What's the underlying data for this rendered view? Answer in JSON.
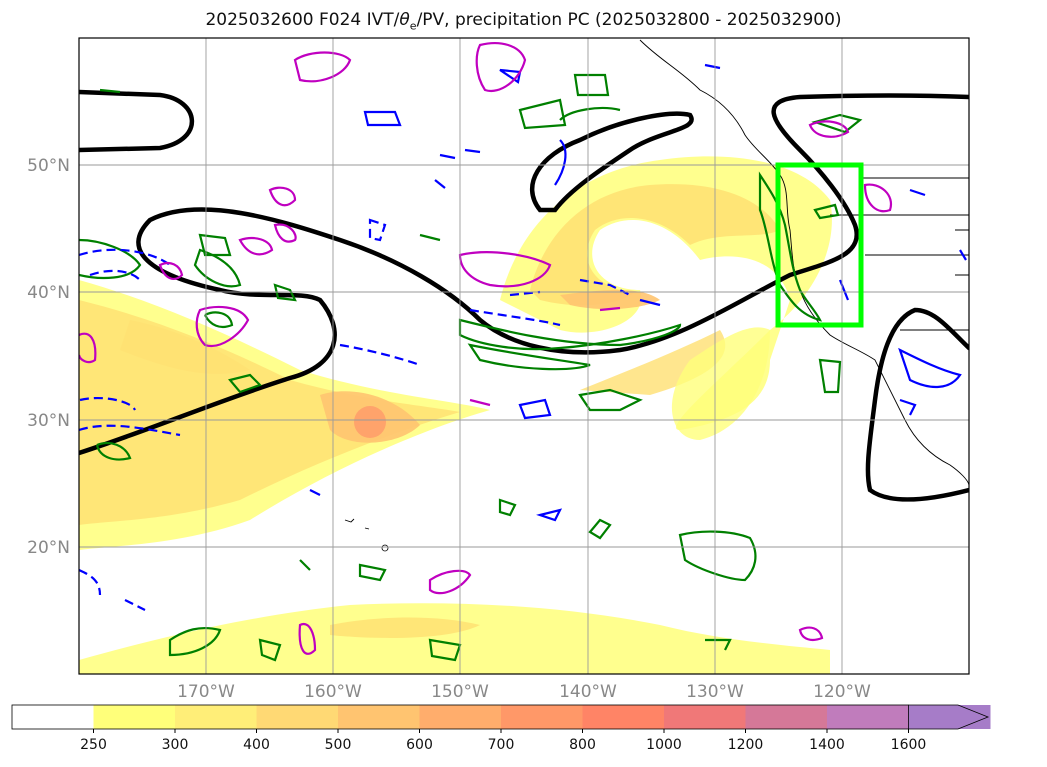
{
  "title": {
    "prefix": "2025032600 F024 IVT/",
    "theta": "θ",
    "theta_sub": "e",
    "suffix": "/PV, precipitation PC (2025032800 - 2025032900)"
  },
  "map": {
    "lon_range": [
      -180,
      -110
    ],
    "lat_range": [
      10,
      60
    ],
    "lon_ticks": [
      -170,
      -160,
      -150,
      -140,
      -130,
      -120
    ],
    "lon_labels": [
      "170°W",
      "160°W",
      "150°W",
      "140°W",
      "130°W",
      "120°W"
    ],
    "lat_ticks": [
      20,
      30,
      40,
      50
    ],
    "lat_labels": [
      "20°N",
      "30°N",
      "40°N",
      "50°N"
    ],
    "grid": true,
    "highlight_box": {
      "lon": [
        -125,
        -118
      ],
      "lat": [
        37.5,
        50
      ],
      "color": "#00ff00"
    },
    "contour_colors": {
      "pv": "#000000",
      "precip_pc": "#008000",
      "theta_e": "#0000ff",
      "extra": "#c000c0"
    }
  },
  "colorbar": {
    "levels": [
      "250",
      "300",
      "400",
      "500",
      "600",
      "700",
      "800",
      "1000",
      "1200",
      "1400",
      "1600"
    ],
    "colors": [
      "#ffffff",
      "#ffff7a",
      "#ffee78",
      "#ffd974",
      "#ffc470",
      "#ffad6c",
      "#ff9868",
      "#ff8466",
      "#f07878",
      "#d57898",
      "#c07cbc",
      "#a67cc8"
    ],
    "extend": "max"
  }
}
